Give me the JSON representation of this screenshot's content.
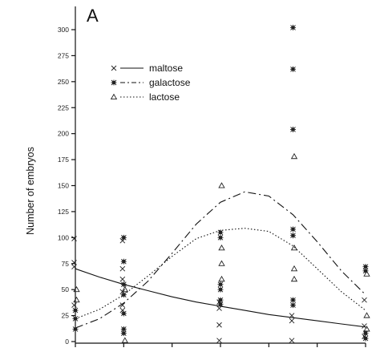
{
  "chart_data": {
    "type": "scatter",
    "panel_label": "A",
    "title": "",
    "xlabel": "",
    "ylabel": "Number of embryos",
    "ylim": [
      0,
      300
    ],
    "yticks": [
      0,
      25,
      50,
      75,
      100,
      125,
      150,
      175,
      200,
      225,
      250,
      275,
      300
    ],
    "xlim": [
      0,
      6
    ],
    "xticks": [
      0,
      1,
      2,
      3,
      4,
      5,
      6
    ],
    "legend_position": "top-left",
    "grid": false,
    "series": [
      {
        "name": "maltose",
        "marker": "x",
        "line_style": "solid",
        "points": [
          {
            "x": 0,
            "y": 99
          },
          {
            "x": 0,
            "y": 76
          },
          {
            "x": 0,
            "y": 72
          },
          {
            "x": 0,
            "y": 35
          },
          {
            "x": 1,
            "y": 97
          },
          {
            "x": 1,
            "y": 70
          },
          {
            "x": 1,
            "y": 60
          },
          {
            "x": 1,
            "y": 48
          },
          {
            "x": 1,
            "y": 35
          },
          {
            "x": 1,
            "y": 30
          },
          {
            "x": 3,
            "y": 38
          },
          {
            "x": 3,
            "y": 32
          },
          {
            "x": 3,
            "y": 16
          },
          {
            "x": 3,
            "y": 1
          },
          {
            "x": 4.5,
            "y": 25
          },
          {
            "x": 4.5,
            "y": 20
          },
          {
            "x": 4.5,
            "y": 1
          },
          {
            "x": 6,
            "y": 40
          },
          {
            "x": 6,
            "y": 15
          },
          {
            "x": 6,
            "y": 5
          }
        ],
        "fit": [
          {
            "x": 0,
            "y": 70
          },
          {
            "x": 0.5,
            "y": 62
          },
          {
            "x": 1,
            "y": 55
          },
          {
            "x": 1.5,
            "y": 49
          },
          {
            "x": 2,
            "y": 43
          },
          {
            "x": 2.5,
            "y": 38
          },
          {
            "x": 3,
            "y": 34
          },
          {
            "x": 3.5,
            "y": 30
          },
          {
            "x": 4,
            "y": 26
          },
          {
            "x": 4.5,
            "y": 23
          },
          {
            "x": 5,
            "y": 20
          },
          {
            "x": 5.5,
            "y": 17
          },
          {
            "x": 6,
            "y": 14
          }
        ]
      },
      {
        "name": "galactose",
        "marker": "asterisk",
        "line_style": "dash-dot",
        "points": [
          {
            "x": 0,
            "y": 30
          },
          {
            "x": 0,
            "y": 22
          },
          {
            "x": 0,
            "y": 12
          },
          {
            "x": 1,
            "y": 100
          },
          {
            "x": 1,
            "y": 77
          },
          {
            "x": 1,
            "y": 55
          },
          {
            "x": 1,
            "y": 45
          },
          {
            "x": 1,
            "y": 27
          },
          {
            "x": 1,
            "y": 12
          },
          {
            "x": 1,
            "y": 8
          },
          {
            "x": 3,
            "y": 105
          },
          {
            "x": 3,
            "y": 100
          },
          {
            "x": 3,
            "y": 55
          },
          {
            "x": 3,
            "y": 50
          },
          {
            "x": 3,
            "y": 40
          },
          {
            "x": 3,
            "y": 36
          },
          {
            "x": 4.5,
            "y": 302
          },
          {
            "x": 4.5,
            "y": 262
          },
          {
            "x": 4.5,
            "y": 204
          },
          {
            "x": 4.5,
            "y": 108
          },
          {
            "x": 4.5,
            "y": 102
          },
          {
            "x": 4.5,
            "y": 40
          },
          {
            "x": 4.5,
            "y": 35
          },
          {
            "x": 6,
            "y": 72
          },
          {
            "x": 6,
            "y": 68
          },
          {
            "x": 6,
            "y": 8
          },
          {
            "x": 6,
            "y": 3
          }
        ],
        "fit": [
          {
            "x": 0,
            "y": 13
          },
          {
            "x": 0.5,
            "y": 22
          },
          {
            "x": 1,
            "y": 37
          },
          {
            "x": 1.5,
            "y": 58
          },
          {
            "x": 2,
            "y": 85
          },
          {
            "x": 2.5,
            "y": 113
          },
          {
            "x": 3,
            "y": 134
          },
          {
            "x": 3.5,
            "y": 144
          },
          {
            "x": 4,
            "y": 140
          },
          {
            "x": 4.5,
            "y": 122
          },
          {
            "x": 5,
            "y": 96
          },
          {
            "x": 5.5,
            "y": 68
          },
          {
            "x": 6,
            "y": 45
          }
        ]
      },
      {
        "name": "lactose",
        "marker": "triangle",
        "line_style": "dotted",
        "points": [
          {
            "x": 0,
            "y": 50
          },
          {
            "x": 0,
            "y": 40
          },
          {
            "x": 1,
            "y": 50
          },
          {
            "x": 1,
            "y": 1
          },
          {
            "x": 3,
            "y": 150
          },
          {
            "x": 3,
            "y": 90
          },
          {
            "x": 3,
            "y": 75
          },
          {
            "x": 3,
            "y": 60
          },
          {
            "x": 4.5,
            "y": 178
          },
          {
            "x": 4.5,
            "y": 90
          },
          {
            "x": 4.5,
            "y": 70
          },
          {
            "x": 4.5,
            "y": 60
          },
          {
            "x": 6,
            "y": 65
          },
          {
            "x": 6,
            "y": 25
          },
          {
            "x": 6,
            "y": 12
          }
        ],
        "fit": [
          {
            "x": 0,
            "y": 22
          },
          {
            "x": 0.5,
            "y": 31
          },
          {
            "x": 1,
            "y": 45
          },
          {
            "x": 1.5,
            "y": 63
          },
          {
            "x": 2,
            "y": 82
          },
          {
            "x": 2.5,
            "y": 99
          },
          {
            "x": 3,
            "y": 107
          },
          {
            "x": 3.5,
            "y": 109
          },
          {
            "x": 4,
            "y": 106
          },
          {
            "x": 4.5,
            "y": 92
          },
          {
            "x": 5,
            "y": 70
          },
          {
            "x": 5.5,
            "y": 48
          },
          {
            "x": 6,
            "y": 30
          }
        ]
      }
    ]
  }
}
